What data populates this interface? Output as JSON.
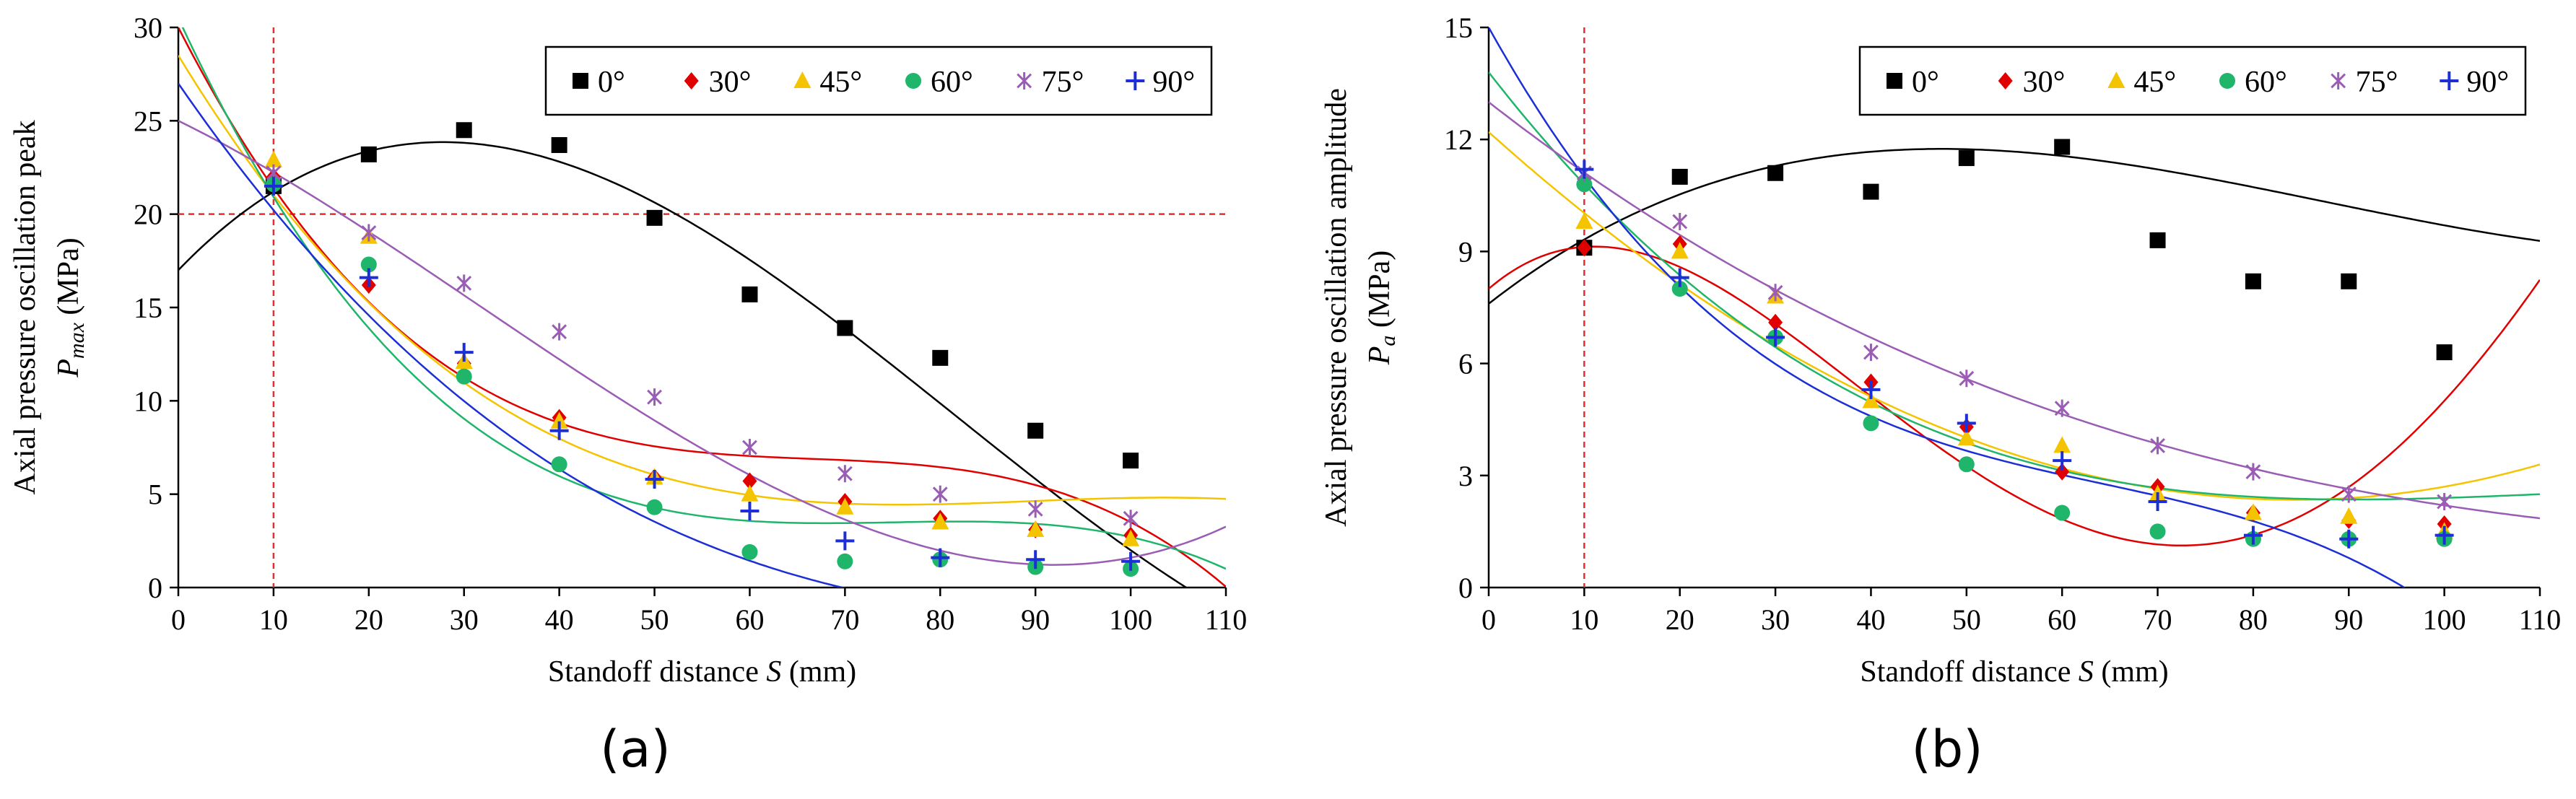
{
  "figure": {
    "panel_labels": [
      "(a)",
      "(b)"
    ]
  },
  "colors": {
    "0°": "#000000",
    "30°": "#e00000",
    "45°": "#f5c400",
    "60°": "#1fb56a",
    "75°": "#9a5cb4",
    "90°": "#1c2fd6",
    "reference_line": "#e03030"
  },
  "chart_data": [
    {
      "type": "scatter",
      "panel": "(a)",
      "title": "",
      "xlabel": "Standoff distance S (mm)",
      "ylabel_line1": "Axial pressure oscillation peak",
      "ylabel_line2": "P_max (MPa)",
      "ylabel_symbol": "P",
      "ylabel_subscript": "max",
      "ylabel_units": "(MPa)",
      "xlim": [
        0,
        110
      ],
      "ylim": [
        0,
        30
      ],
      "xticks": [
        0,
        10,
        20,
        30,
        40,
        50,
        60,
        70,
        80,
        90,
        100,
        110
      ],
      "yticks": [
        0,
        5,
        10,
        15,
        20,
        25,
        30
      ],
      "reference_lines": {
        "x": 10,
        "y": 20
      },
      "legend_position": "top-right",
      "series": [
        {
          "name": "0°",
          "marker": "square",
          "x": [
            10,
            20,
            30,
            40,
            50,
            60,
            70,
            80,
            90,
            100
          ],
          "y": [
            21.5,
            23.2,
            24.5,
            23.7,
            19.8,
            15.7,
            13.9,
            12.3,
            8.4,
            6.8
          ],
          "fit_coeffs": [
            17.0,
            0.53,
            -0.0115,
            4.7e-05
          ]
        },
        {
          "name": "30°",
          "marker": "diamond",
          "x": [
            10,
            20,
            30,
            40,
            50,
            60,
            70,
            80,
            90,
            100
          ],
          "y": [
            22.0,
            16.2,
            12.0,
            9.1,
            5.9,
            5.7,
            4.6,
            3.7,
            3.1,
            2.8
          ],
          "fit_coeffs": [
            30.0,
            -1.0,
            0.0147,
            -7.35e-05
          ]
        },
        {
          "name": "45°",
          "marker": "triangle",
          "x": [
            10,
            20,
            30,
            40,
            50,
            60,
            70,
            80,
            90,
            100
          ],
          "y": [
            22.9,
            18.8,
            12.1,
            8.9,
            5.9,
            5.0,
            4.3,
            3.5,
            3.1,
            2.6
          ],
          "fit_coeffs": [
            28.5,
            -0.84,
            0.0096,
            -3.57e-05
          ]
        },
        {
          "name": "60°",
          "marker": "circle",
          "x": [
            10,
            20,
            30,
            40,
            50,
            60,
            70,
            80,
            90,
            100
          ],
          "y": [
            21.6,
            17.3,
            11.3,
            6.6,
            4.3,
            1.9,
            1.4,
            1.5,
            1.1,
            1.0
          ],
          "fit_coeffs": [
            30.5,
            -1.1,
            0.0148,
            -6.58e-05
          ]
        },
        {
          "name": "75°",
          "marker": "star",
          "x": [
            10,
            20,
            30,
            40,
            50,
            60,
            70,
            80,
            90,
            100
          ],
          "y": [
            22.2,
            19.0,
            16.3,
            13.7,
            10.2,
            7.5,
            6.1,
            5.0,
            4.2,
            3.7
          ],
          "fit_coeffs": [
            25.0,
            -0.25,
            -0.003,
            3.16e-05
          ]
        },
        {
          "name": "90°",
          "marker": "plus",
          "x": [
            10,
            20,
            30,
            40,
            50,
            60,
            70,
            80,
            90,
            100
          ],
          "y": [
            21.5,
            16.6,
            12.6,
            8.4,
            5.8,
            4.1,
            2.5,
            1.6,
            1.5,
            1.4
          ],
          "fit_coeffs": [
            27.0,
            -0.74,
            0.0063,
            -1.78e-05
          ]
        }
      ]
    },
    {
      "type": "scatter",
      "panel": "(b)",
      "title": "",
      "xlabel": "Standoff distance S (mm)",
      "ylabel_line1": "Axial pressure oscillation  amplitude",
      "ylabel_line2": "P_a (MPa)",
      "ylabel_symbol": "P",
      "ylabel_subscript": "a",
      "ylabel_units": "(MPa)",
      "xlim": [
        0,
        110
      ],
      "ylim": [
        0,
        15
      ],
      "xticks": [
        0,
        10,
        20,
        30,
        40,
        50,
        60,
        70,
        80,
        90,
        100,
        110
      ],
      "yticks": [
        0,
        3,
        6,
        9,
        12,
        15
      ],
      "reference_lines": {
        "x": 10
      },
      "legend_position": "top-right",
      "series": [
        {
          "name": "0°",
          "marker": "square",
          "x": [
            10,
            20,
            30,
            40,
            50,
            60,
            70,
            80,
            90,
            100
          ],
          "y": [
            9.1,
            11.0,
            11.1,
            10.6,
            11.5,
            11.8,
            9.3,
            8.2,
            8.2,
            6.3
          ],
          "fit_coeffs": [
            7.6,
            0.2,
            -0.0029,
            1.11e-05
          ]
        },
        {
          "name": "30°",
          "marker": "diamond",
          "x": [
            10,
            20,
            30,
            40,
            50,
            60,
            70,
            80,
            90,
            100
          ],
          "y": [
            9.1,
            9.2,
            7.1,
            5.5,
            4.3,
            3.1,
            2.7,
            2.0,
            1.8,
            1.7
          ],
          "fit_coeffs": [
            8.0,
            0.22,
            -0.0121,
            0.000136,
            -4e-07
          ]
        },
        {
          "name": "45°",
          "marker": "triangle",
          "x": [
            10,
            20,
            30,
            40,
            50,
            60,
            70,
            80,
            90,
            100
          ],
          "y": [
            9.8,
            9.0,
            7.8,
            5.0,
            4.0,
            3.8,
            2.5,
            2.0,
            1.9,
            1.5
          ],
          "fit_coeffs": [
            12.2,
            -0.23,
            0.0013,
            5e-07
          ]
        },
        {
          "name": "60°",
          "marker": "circle",
          "x": [
            10,
            20,
            30,
            40,
            50,
            60,
            70,
            80,
            90,
            100
          ],
          "y": [
            10.8,
            8.0,
            6.7,
            4.4,
            3.3,
            2.0,
            1.5,
            1.3,
            1.3,
            1.3
          ],
          "fit_coeffs": [
            13.8,
            -0.33,
            0.0031,
            -9.4e-06
          ]
        },
        {
          "name": "75°",
          "marker": "star",
          "x": [
            10,
            20,
            30,
            40,
            50,
            60,
            70,
            80,
            90,
            100
          ],
          "y": [
            11.1,
            9.8,
            7.9,
            6.3,
            5.6,
            4.8,
            3.8,
            3.1,
            2.5,
            2.3
          ],
          "fit_coeffs": [
            13.0,
            -0.2,
            0.00115,
            -2.3e-06
          ]
        },
        {
          "name": "90°",
          "marker": "plus",
          "x": [
            10,
            20,
            30,
            40,
            50,
            60,
            70,
            80,
            90,
            100
          ],
          "y": [
            11.2,
            8.3,
            6.7,
            5.3,
            4.4,
            3.4,
            2.3,
            1.4,
            1.3,
            1.4
          ],
          "fit_coeffs": [
            15.0,
            -0.46,
            0.0063,
            -3.27e-05
          ]
        }
      ]
    }
  ]
}
